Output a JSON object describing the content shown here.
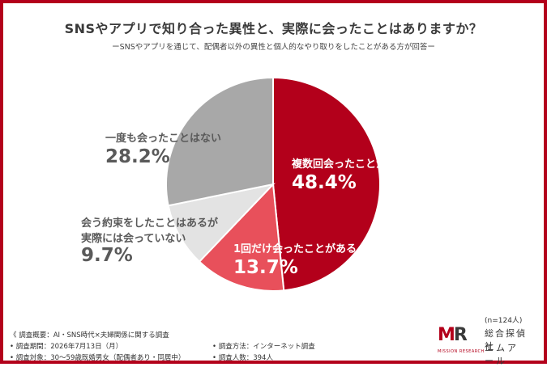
{
  "title": "SNSやアプリで知り合った異性と、実際に会ったことはありますか？",
  "subtitle": "ーSNSやアプリを通じて、配偶者以外の異性と個人的なやり取りをしたことがある方が回答ー",
  "chart_data": {
    "type": "pie",
    "slices": [
      {
        "label": "複数回会ったことがある",
        "value": 48.4,
        "value_text": "48.4%",
        "color": "#b3001b"
      },
      {
        "label": "1回だけ会ったことがある",
        "value": 13.7,
        "value_text": "13.7%",
        "color": "#e8505b"
      },
      {
        "label_lines": [
          "会う約束をしたことはあるが",
          "実際には会っていない"
        ],
        "value": 9.7,
        "value_text": "9.7%",
        "color": "#e3e3e3"
      },
      {
        "label": "一度も会ったことはない",
        "value": 28.2,
        "value_text": "28.2%",
        "color": "#a8a8a8"
      }
    ]
  },
  "n_note": "(n=124人)",
  "footer": {
    "heading": "《 調査概要：AI・SNS時代×夫婦関係に関する調査",
    "period": "• 調査期間：2026年7月13日（月）",
    "target": "• 調査対象：30〜59歳既婚男女（配偶者あり・同居中）",
    "method": "• 調査方法：インターネット調査",
    "count": "• 調査人数：394人"
  },
  "logo": {
    "mark_m": "M",
    "mark_r": "R",
    "sub": "MISSION RESEARCH",
    "jp1": "総合探偵社",
    "jp2": "エムアール"
  }
}
